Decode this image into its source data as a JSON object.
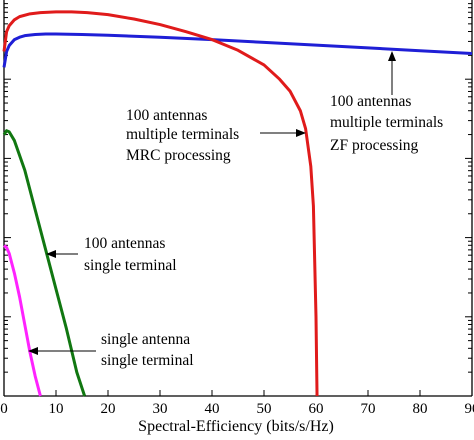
{
  "chart_data": {
    "type": "line",
    "xlabel": "Spectral-Efficiency (bits/s/Hz)",
    "ylabel": "",
    "xlim": [
      0,
      90
    ],
    "ylim": [
      0,
      1
    ],
    "y_scale": "log",
    "grid": false,
    "x_ticks": [
      0,
      10,
      20,
      30,
      40,
      50,
      60,
      70,
      80,
      90
    ],
    "x_tick_labels": [
      "0",
      "10",
      "20",
      "30",
      "40",
      "50",
      "60",
      "70",
      "80",
      "90"
    ],
    "series": [
      {
        "name": "100 antennas multiple terminals ZF processing",
        "color": "#1f1fd6",
        "x": [
          0,
          0.5,
          1,
          2,
          3,
          4,
          6,
          8,
          10,
          15,
          20,
          30,
          40,
          50,
          60,
          70,
          80,
          90
        ],
        "y": [
          0.83,
          0.87,
          0.885,
          0.9,
          0.906,
          0.91,
          0.913,
          0.914,
          0.914,
          0.913,
          0.911,
          0.906,
          0.9,
          0.893,
          0.886,
          0.879,
          0.872,
          0.865
        ]
      },
      {
        "name": "100 antennas multiple terminals MRC processing",
        "color": "#e01b1b",
        "x": [
          0,
          0.5,
          1,
          2,
          3,
          5,
          7,
          10,
          13,
          16,
          20,
          25,
          30,
          35,
          40,
          45,
          50,
          53,
          55,
          57,
          58,
          59,
          59.5,
          60,
          60.2
        ],
        "y": [
          0.87,
          0.92,
          0.935,
          0.95,
          0.958,
          0.965,
          0.968,
          0.97,
          0.97,
          0.968,
          0.963,
          0.952,
          0.938,
          0.92,
          0.9,
          0.873,
          0.836,
          0.8,
          0.77,
          0.72,
          0.675,
          0.58,
          0.48,
          0.2,
          0.0
        ]
      },
      {
        "name": "100 antennas single terminal",
        "color": "#117711",
        "x": [
          0,
          0.5,
          1,
          2,
          4,
          6,
          8,
          10,
          12,
          14,
          15.5
        ],
        "y": [
          0.66,
          0.67,
          0.667,
          0.645,
          0.57,
          0.47,
          0.37,
          0.27,
          0.17,
          0.06,
          0.0
        ]
      },
      {
        "name": "single antenna single terminal",
        "color": "#ff22ff",
        "x": [
          0,
          0.5,
          1,
          2,
          3,
          4,
          5,
          6,
          7
        ],
        "y": [
          0.38,
          0.375,
          0.36,
          0.31,
          0.25,
          0.18,
          0.11,
          0.05,
          0.0
        ]
      }
    ],
    "annotations": [
      {
        "lines": [
          "100 antennas",
          "multiple terminals",
          "MRC processing"
        ]
      },
      {
        "lines": [
          "100 antennas",
          "multiple terminals",
          "ZF processing"
        ]
      },
      {
        "lines": [
          "100 antennas",
          "single terminal"
        ]
      },
      {
        "lines": [
          "single antenna",
          "single terminal"
        ]
      }
    ]
  }
}
